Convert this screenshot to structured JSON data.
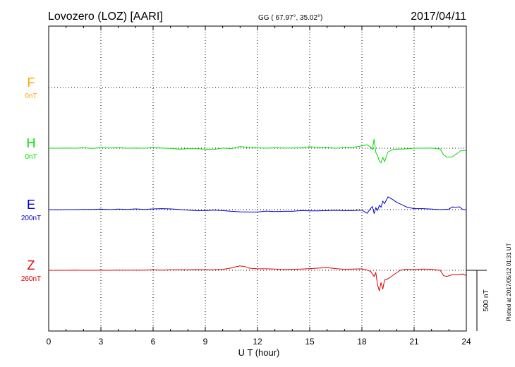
{
  "header": {
    "station": "Lovozero (LOZ)  [AARI]",
    "coords": "GG ( 67.97°,  35.02°)",
    "date": "2017/04/11"
  },
  "footer_note": "Plotted at 2017/05/12 01:31  UT",
  "scale_label": "500 nT",
  "colors": {
    "F": "#ffa500",
    "H": "#00dd00",
    "E": "#0000cc",
    "Z": "#dd0000",
    "axis": "#000000"
  },
  "chart_data": {
    "type": "line",
    "xlabel": "U T (hour)",
    "xlim": [
      0,
      24
    ],
    "xticks": [
      "0",
      "3",
      "6",
      "9",
      "12",
      "15",
      "18",
      "21",
      "24"
    ],
    "series": [
      {
        "name": "F",
        "offset_label": "0nT",
        "x": [],
        "values": []
      },
      {
        "name": "H",
        "offset_label": "0nT",
        "x": [
          0,
          0.5,
          1,
          1.5,
          2,
          2.5,
          3,
          3.5,
          4,
          4.5,
          5,
          5.5,
          6,
          6.5,
          7,
          7.5,
          8,
          8.5,
          9,
          9.5,
          10,
          10.5,
          11,
          11.5,
          12,
          12.5,
          13,
          13.5,
          14,
          14.5,
          15,
          15.5,
          16,
          16.5,
          17,
          17.5,
          17.8,
          18,
          18.3,
          18.5,
          18.6,
          18.7,
          18.8,
          18.9,
          19,
          19.1,
          19.2,
          19.3,
          19.5,
          19.8,
          20,
          20.5,
          21,
          21.5,
          22,
          22.3,
          22.5,
          22.7,
          22.9,
          23.2,
          23.5,
          23.7,
          24
        ],
        "values": [
          0,
          0,
          2,
          0,
          4,
          -2,
          4,
          2,
          4,
          0,
          2,
          0,
          6,
          2,
          -2,
          -8,
          -4,
          -4,
          -8,
          -10,
          2,
          -4,
          14,
          6,
          4,
          0,
          4,
          2,
          2,
          4,
          12,
          6,
          6,
          0,
          6,
          8,
          14,
          20,
          28,
          10,
          -10,
          75,
          -35,
          -60,
          -105,
          -120,
          -75,
          -110,
          -30,
          -10,
          -8,
          -6,
          0,
          0,
          2,
          -4,
          -6,
          -55,
          -75,
          -70,
          -40,
          -20,
          -20
        ]
      },
      {
        "name": "E",
        "offset_label": "200nT",
        "x": [
          0,
          0.5,
          1,
          1.5,
          2,
          2.5,
          3,
          3.5,
          4,
          4.5,
          5,
          5.5,
          6,
          6.5,
          7,
          7.5,
          8,
          8.5,
          9,
          9.5,
          10,
          10.5,
          11,
          11.5,
          12,
          12.5,
          13,
          13.5,
          14,
          14.5,
          15,
          15.5,
          16,
          16.5,
          17,
          17.5,
          18,
          18.3,
          18.5,
          18.6,
          18.7,
          18.8,
          18.9,
          19,
          19.1,
          19.2,
          19.3,
          19.5,
          19.8,
          20,
          20.3,
          20.6,
          21,
          21.5,
          22,
          22.5,
          23,
          23.2,
          23.4,
          23.6,
          23.8,
          24
        ],
        "values": [
          0,
          -2,
          0,
          0,
          2,
          2,
          4,
          0,
          4,
          2,
          6,
          2,
          6,
          8,
          6,
          2,
          -4,
          -8,
          -8,
          -4,
          -8,
          -14,
          -18,
          -20,
          -20,
          -12,
          -16,
          -14,
          -14,
          -8,
          -10,
          -10,
          -8,
          -6,
          -8,
          -8,
          -4,
          -30,
          10,
          25,
          -30,
          15,
          -5,
          35,
          20,
          70,
          50,
          105,
          80,
          60,
          40,
          20,
          8,
          8,
          4,
          0,
          4,
          22,
          18,
          24,
          0,
          0
        ]
      },
      {
        "name": "Z",
        "offset_label": "260nT",
        "x": [
          0,
          0.5,
          1,
          1.5,
          2,
          2.5,
          3,
          3.5,
          4,
          4.5,
          5,
          5.5,
          6,
          6.5,
          7,
          7.5,
          8,
          8.5,
          9,
          9.5,
          10,
          10.2,
          10.5,
          10.8,
          11,
          11.3,
          11.5,
          12,
          12.5,
          13,
          13.5,
          14,
          14.5,
          15,
          15.5,
          16,
          16.5,
          17,
          17.5,
          18,
          18.3,
          18.5,
          18.7,
          18.8,
          18.9,
          19,
          19.1,
          19.2,
          19.3,
          19.5,
          19.7,
          20,
          20.2,
          20.5,
          21,
          21.5,
          22,
          22.5,
          22.7,
          22.9,
          23.2,
          23.5,
          23.8,
          24
        ],
        "values": [
          0,
          0,
          0,
          2,
          0,
          0,
          2,
          0,
          2,
          2,
          2,
          2,
          4,
          2,
          4,
          4,
          4,
          6,
          4,
          4,
          8,
          12,
          20,
          30,
          36,
          30,
          18,
          12,
          12,
          10,
          6,
          8,
          10,
          14,
          18,
          22,
          14,
          8,
          10,
          12,
          2,
          -10,
          -50,
          -20,
          -120,
          -170,
          -100,
          -155,
          -80,
          -70,
          -50,
          -20,
          0,
          8,
          6,
          10,
          8,
          0,
          -45,
          -50,
          -35,
          -35,
          -30,
          -45
        ]
      }
    ]
  }
}
